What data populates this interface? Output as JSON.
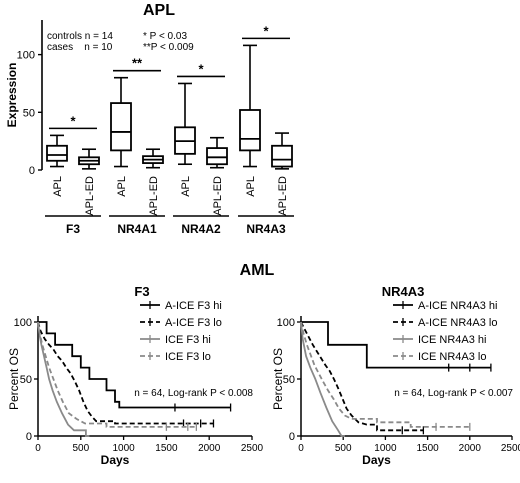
{
  "figure": {
    "panel_a_title": "APL",
    "panel_b_title": "AML"
  },
  "chart_data": [
    {
      "type": "box",
      "title": "APL",
      "ylabel": "Expression",
      "ylim": [
        0,
        130
      ],
      "yticks": [
        0,
        50,
        100
      ],
      "legend_text": [
        "controls n = 14",
        "cases    n = 10",
        "* P < 0.03",
        "**P < 0.009"
      ],
      "groups": [
        {
          "gene": "F3",
          "significance": "*",
          "boxes": [
            {
              "label": "APL",
              "min": 3,
              "q1": 8,
              "median": 13,
              "q3": 21,
              "max": 30
            },
            {
              "label": "APL-ED",
              "min": 1,
              "q1": 5,
              "median": 8,
              "q3": 11,
              "max": 18
            }
          ]
        },
        {
          "gene": "NR4A1",
          "significance": "**",
          "boxes": [
            {
              "label": "APL",
              "min": 3,
              "q1": 17,
              "median": 33,
              "q3": 58,
              "max": 80
            },
            {
              "label": "APL-ED",
              "min": 2,
              "q1": 6,
              "median": 9,
              "q3": 12,
              "max": 18
            }
          ]
        },
        {
          "gene": "NR4A2",
          "significance": "*",
          "boxes": [
            {
              "label": "APL",
              "min": 5,
              "q1": 14,
              "median": 25,
              "q3": 37,
              "max": 75
            },
            {
              "label": "APL-ED",
              "min": 2,
              "q1": 5,
              "median": 11,
              "q3": 19,
              "max": 28
            }
          ]
        },
        {
          "gene": "NR4A3",
          "significance": "*",
          "boxes": [
            {
              "label": "APL",
              "min": 3,
              "q1": 17,
              "median": 27,
              "q3": 52,
              "max": 108
            },
            {
              "label": "APL-ED",
              "min": 1,
              "q1": 3,
              "median": 9,
              "q3": 21,
              "max": 32
            }
          ]
        }
      ]
    },
    {
      "type": "line",
      "subtype": "kaplan-meier",
      "title": "F3",
      "xlabel": "Days",
      "ylabel": "Percent OS",
      "xlim": [
        0,
        2500
      ],
      "ylim": [
        0,
        100
      ],
      "xticks": [
        0,
        500,
        1000,
        1500,
        2000,
        2500
      ],
      "yticks": [
        0,
        50,
        100
      ],
      "annotation": "n = 64, Log-rank P < 0.008",
      "series": [
        {
          "name": "A-ICE F3 hi",
          "color": "#000000",
          "dash": "solid",
          "points": [
            [
              0,
              100
            ],
            [
              100,
              100
            ],
            [
              100,
              90
            ],
            [
              200,
              90
            ],
            [
              200,
              80
            ],
            [
              400,
              80
            ],
            [
              400,
              70
            ],
            [
              500,
              70
            ],
            [
              500,
              60
            ],
            [
              600,
              60
            ],
            [
              600,
              50
            ],
            [
              800,
              50
            ],
            [
              800,
              40
            ],
            [
              900,
              40
            ],
            [
              900,
              30
            ],
            [
              950,
              30
            ],
            [
              950,
              25
            ],
            [
              2250,
              25
            ]
          ],
          "censor_x": [
            1600,
            2250
          ]
        },
        {
          "name": "A-ICE F3 lo",
          "color": "#000000",
          "dash": "dashed",
          "points": [
            [
              0,
              100
            ],
            [
              30,
              92
            ],
            [
              80,
              85
            ],
            [
              130,
              80
            ],
            [
              180,
              76
            ],
            [
              230,
              70
            ],
            [
              280,
              66
            ],
            [
              330,
              60
            ],
            [
              380,
              55
            ],
            [
              430,
              48
            ],
            [
              480,
              40
            ],
            [
              530,
              30
            ],
            [
              580,
              22
            ],
            [
              630,
              17
            ],
            [
              680,
              13
            ],
            [
              900,
              13
            ],
            [
              900,
              11
            ],
            [
              2050,
              11
            ]
          ],
          "censor_x": [
            1700,
            1900,
            2050
          ]
        },
        {
          "name": "ICE F3 hi",
          "color": "#8a8a8a",
          "dash": "solid",
          "points": [
            [
              0,
              100
            ],
            [
              15,
              90
            ],
            [
              40,
              80
            ],
            [
              70,
              70
            ],
            [
              100,
              60
            ],
            [
              130,
              50
            ],
            [
              170,
              40
            ],
            [
              220,
              30
            ],
            [
              280,
              20
            ],
            [
              350,
              10
            ],
            [
              420,
              5
            ],
            [
              560,
              5
            ],
            [
              560,
              0
            ],
            [
              600,
              0
            ]
          ],
          "censor_x": []
        },
        {
          "name": "ICE F3 lo",
          "color": "#8a8a8a",
          "dash": "dashed",
          "points": [
            [
              0,
              100
            ],
            [
              20,
              90
            ],
            [
              50,
              80
            ],
            [
              90,
              70
            ],
            [
              130,
              60
            ],
            [
              180,
              50
            ],
            [
              230,
              40
            ],
            [
              290,
              30
            ],
            [
              360,
              20
            ],
            [
              450,
              15
            ],
            [
              550,
              11
            ],
            [
              800,
              11
            ],
            [
              800,
              8
            ],
            [
              1850,
              8
            ]
          ],
          "censor_x": [
            1500,
            1750,
            1850
          ]
        }
      ]
    },
    {
      "type": "line",
      "subtype": "kaplan-meier",
      "title": "NR4A3",
      "xlabel": "Days",
      "ylabel": "Percent OS",
      "xlim": [
        0,
        2500
      ],
      "ylim": [
        0,
        100
      ],
      "xticks": [
        0,
        500,
        1000,
        1500,
        2000,
        2500
      ],
      "yticks": [
        0,
        50,
        100
      ],
      "annotation": "n = 64, Log-rank P < 0.007",
      "series": [
        {
          "name": "A-ICE NR4A3 hi",
          "color": "#000000",
          "dash": "solid",
          "points": [
            [
              0,
              100
            ],
            [
              320,
              100
            ],
            [
              320,
              80
            ],
            [
              780,
              80
            ],
            [
              780,
              60
            ],
            [
              2250,
              60
            ]
          ],
          "censor_x": [
            1750,
            2000,
            2250
          ]
        },
        {
          "name": "A-ICE NR4A3 lo",
          "color": "#000000",
          "dash": "dashed",
          "points": [
            [
              0,
              100
            ],
            [
              40,
              94
            ],
            [
              90,
              87
            ],
            [
              140,
              80
            ],
            [
              190,
              74
            ],
            [
              240,
              68
            ],
            [
              290,
              62
            ],
            [
              340,
              57
            ],
            [
              390,
              50
            ],
            [
              440,
              42
            ],
            [
              490,
              33
            ],
            [
              540,
              24
            ],
            [
              600,
              18
            ],
            [
              680,
              12
            ],
            [
              780,
              10
            ],
            [
              900,
              10
            ],
            [
              900,
              5
            ],
            [
              1450,
              5
            ]
          ],
          "censor_x": [
            1200,
            1450
          ]
        },
        {
          "name": "ICE NR4A3 hi",
          "color": "#8a8a8a",
          "dash": "solid",
          "points": [
            [
              0,
              100
            ],
            [
              20,
              85
            ],
            [
              60,
              70
            ],
            [
              110,
              60
            ],
            [
              170,
              50
            ],
            [
              230,
              38
            ],
            [
              300,
              25
            ],
            [
              370,
              13
            ],
            [
              440,
              5
            ],
            [
              480,
              0
            ],
            [
              520,
              0
            ]
          ],
          "censor_x": []
        },
        {
          "name": "ICE NR4A3 lo",
          "color": "#8a8a8a",
          "dash": "dashed",
          "points": [
            [
              0,
              100
            ],
            [
              30,
              90
            ],
            [
              70,
              80
            ],
            [
              110,
              72
            ],
            [
              160,
              62
            ],
            [
              210,
              55
            ],
            [
              260,
              48
            ],
            [
              320,
              40
            ],
            [
              390,
              32
            ],
            [
              450,
              24
            ],
            [
              520,
              18
            ],
            [
              600,
              15
            ],
            [
              900,
              15
            ],
            [
              900,
              12
            ],
            [
              1300,
              12
            ],
            [
              1300,
              8
            ],
            [
              2000,
              8
            ]
          ],
          "censor_x": [
            1600,
            2000
          ]
        }
      ]
    }
  ]
}
